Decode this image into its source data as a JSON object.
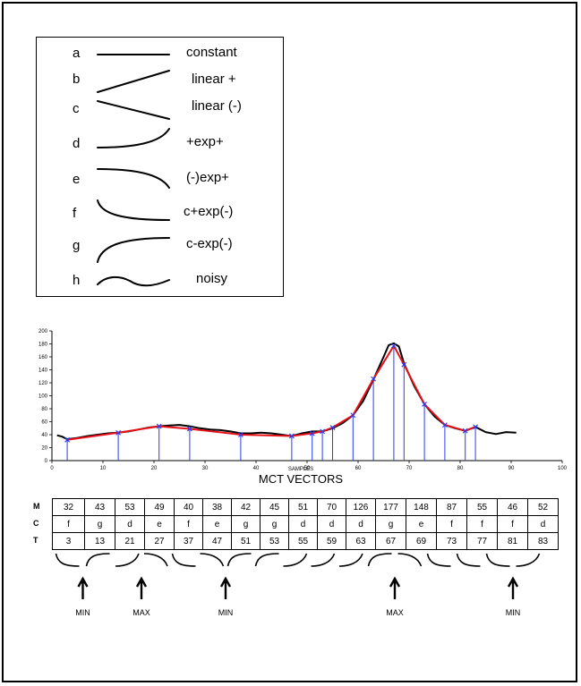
{
  "legend": [
    {
      "letter": "a",
      "name": "constant",
      "icon": "constant-shape"
    },
    {
      "letter": "b",
      "name": "linear +",
      "icon": "linear-up-shape"
    },
    {
      "letter": "c",
      "name": "linear (-)",
      "icon": "linear-down-shape"
    },
    {
      "letter": "d",
      "name": "+exp+",
      "icon": "exp-up-shape"
    },
    {
      "letter": "e",
      "name": "(-)exp+",
      "icon": "exp-down-shape"
    },
    {
      "letter": "f",
      "name": "c+exp(-)",
      "icon": "decay-shape"
    },
    {
      "letter": "g",
      "name": "c-exp(-)",
      "icon": "saturation-shape"
    },
    {
      "letter": "h",
      "name": "noisy",
      "icon": "wave-shape"
    }
  ],
  "chart_data": {
    "type": "line",
    "xlabel": "SAMPLES",
    "caption": "MCT VECTORS",
    "xlim": [
      0,
      100
    ],
    "ylim": [
      0,
      200
    ],
    "x_ticks": [
      0,
      10,
      20,
      30,
      40,
      50,
      60,
      70,
      80,
      90,
      100
    ],
    "y_ticks": [
      0,
      20,
      40,
      60,
      80,
      100,
      120,
      140,
      160,
      180,
      200
    ],
    "signal": [
      [
        1,
        39
      ],
      [
        2,
        37
      ],
      [
        3,
        33
      ],
      [
        5,
        35
      ],
      [
        7,
        38
      ],
      [
        9,
        40
      ],
      [
        11,
        42
      ],
      [
        13,
        43
      ],
      [
        15,
        45
      ],
      [
        17,
        48
      ],
      [
        19,
        51
      ],
      [
        21,
        53
      ],
      [
        23,
        54
      ],
      [
        25,
        55
      ],
      [
        27,
        53
      ],
      [
        29,
        50
      ],
      [
        31,
        48
      ],
      [
        33,
        47
      ],
      [
        35,
        45
      ],
      [
        37,
        42
      ],
      [
        39,
        42
      ],
      [
        41,
        43
      ],
      [
        43,
        42
      ],
      [
        45,
        40
      ],
      [
        47,
        38
      ],
      [
        49,
        42
      ],
      [
        51,
        45
      ],
      [
        53,
        45
      ],
      [
        55,
        50
      ],
      [
        57,
        58
      ],
      [
        59,
        70
      ],
      [
        61,
        92
      ],
      [
        63,
        125
      ],
      [
        65,
        160
      ],
      [
        66,
        178
      ],
      [
        67,
        181
      ],
      [
        68,
        176
      ],
      [
        69,
        150
      ],
      [
        71,
        115
      ],
      [
        73,
        87
      ],
      [
        75,
        68
      ],
      [
        77,
        55
      ],
      [
        79,
        50
      ],
      [
        81,
        46
      ],
      [
        83,
        52
      ],
      [
        85,
        44
      ],
      [
        87,
        41
      ],
      [
        89,
        44
      ],
      [
        91,
        43
      ]
    ],
    "fit": [
      [
        3,
        32
      ],
      [
        13,
        43
      ],
      [
        21,
        53
      ],
      [
        27,
        49
      ],
      [
        37,
        40
      ],
      [
        47,
        38
      ],
      [
        51,
        42
      ],
      [
        53,
        45
      ],
      [
        55,
        51
      ],
      [
        59,
        70
      ],
      [
        63,
        126
      ],
      [
        67,
        177
      ],
      [
        69,
        148
      ],
      [
        73,
        87
      ],
      [
        77,
        55
      ],
      [
        81,
        46
      ],
      [
        83,
        52
      ]
    ],
    "vectors": [
      [
        3,
        32
      ],
      [
        13,
        43
      ],
      [
        21,
        53
      ],
      [
        27,
        49
      ],
      [
        37,
        40
      ],
      [
        47,
        38
      ],
      [
        51,
        42
      ],
      [
        53,
        45
      ],
      [
        55,
        51
      ],
      [
        59,
        70
      ],
      [
        63,
        126
      ],
      [
        67,
        177
      ],
      [
        69,
        148
      ],
      [
        73,
        87
      ],
      [
        77,
        55
      ],
      [
        81,
        46
      ],
      [
        83,
        52
      ]
    ]
  },
  "table": {
    "row_labels": [
      "M",
      "C",
      "T"
    ],
    "M": [
      "32",
      "43",
      "53",
      "49",
      "40",
      "38",
      "42",
      "45",
      "51",
      "70",
      "126",
      "177",
      "148",
      "87",
      "55",
      "46",
      "52"
    ],
    "C": [
      "f",
      "g",
      "d",
      "e",
      "f",
      "e",
      "g",
      "g",
      "d",
      "d",
      "d",
      "g",
      "e",
      "f",
      "f",
      "f",
      "d"
    ],
    "T": [
      "3",
      "13",
      "21",
      "27",
      "37",
      "47",
      "51",
      "53",
      "55",
      "59",
      "63",
      "67",
      "69",
      "73",
      "77",
      "81",
      "83"
    ]
  },
  "shape_row": [
    "f",
    "g",
    "d",
    "e",
    "f",
    "e",
    "g",
    "g",
    "d",
    "d",
    "d",
    "g",
    "e",
    "f",
    "f",
    "f",
    "d"
  ],
  "annotations": [
    {
      "label": "MIN",
      "col": 1.5
    },
    {
      "label": "MAX",
      "col": 3.5
    },
    {
      "label": "MIN",
      "col": 6.5
    },
    {
      "label": "MAX",
      "col": 12.5
    },
    {
      "label": "MIN",
      "col": 16.5
    }
  ]
}
